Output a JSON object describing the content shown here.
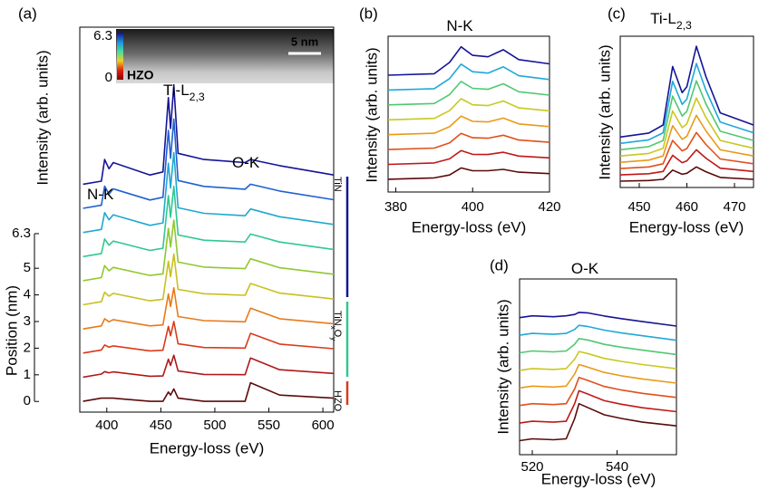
{
  "chart_data": [
    {
      "type": "line",
      "panel_label": "(a)",
      "xlabel": "Energy-loss (eV)",
      "ylabel": "Intensity (arb. units)",
      "y2label": "Position (nm)",
      "xlim": [
        375,
        610
      ],
      "xticks": [
        400,
        450,
        500,
        550,
        600
      ],
      "ylim": [
        -0.35,
        12.1
      ],
      "y2lim": [
        -0.4,
        14.05
      ],
      "y2ticks": [
        0,
        1,
        2,
        3,
        4,
        5,
        6.3
      ],
      "x": [
        378,
        395,
        398,
        402,
        406,
        440,
        452,
        457,
        459,
        462,
        466,
        490,
        528,
        533,
        560,
        610
      ],
      "series": [
        {
          "color": "#5a0a0a",
          "values": [
            0,
            0.1,
            0.1,
            0.1,
            0.1,
            0,
            0,
            0.3,
            0.2,
            0.4,
            0.1,
            0,
            0,
            0.6,
            0.2,
            0.1
          ]
        },
        {
          "color": "#b01818",
          "values": [
            0.78,
            0.88,
            0.96,
            0.92,
            0.95,
            0.81,
            0.82,
            1.36,
            1.16,
            1.49,
            0.98,
            0.87,
            0.86,
            1.4,
            1.02,
            0.9
          ]
        },
        {
          "color": "#d83a1a",
          "values": [
            1.56,
            1.66,
            1.82,
            1.75,
            1.79,
            1.63,
            1.65,
            2.42,
            2.12,
            2.58,
            1.86,
            1.74,
            1.72,
            2.2,
            1.85,
            1.7
          ]
        },
        {
          "color": "#e87a1a",
          "values": [
            2.34,
            2.44,
            2.67,
            2.57,
            2.64,
            2.44,
            2.47,
            3.47,
            3.07,
            3.67,
            2.74,
            2.61,
            2.57,
            3.01,
            2.67,
            2.51
          ]
        },
        {
          "color": "#c8c020",
          "values": [
            3.12,
            3.22,
            3.53,
            3.4,
            3.49,
            3.25,
            3.3,
            4.53,
            4.03,
            4.76,
            3.62,
            3.48,
            3.43,
            3.81,
            3.5,
            3.31
          ]
        },
        {
          "color": "#90c830",
          "values": [
            3.9,
            4.0,
            4.39,
            4.22,
            4.33,
            4.07,
            4.12,
            5.59,
            4.99,
            5.86,
            4.5,
            4.34,
            4.29,
            4.61,
            4.32,
            4.11
          ]
        },
        {
          "color": "#30c890",
          "values": [
            4.68,
            4.78,
            5.25,
            5.05,
            5.18,
            4.88,
            4.95,
            6.65,
            5.95,
            6.95,
            5.38,
            5.21,
            5.15,
            5.41,
            5.15,
            4.91
          ]
        },
        {
          "color": "#20a8d0",
          "values": [
            5.46,
            5.56,
            6.1,
            5.87,
            6.03,
            5.69,
            5.77,
            7.7,
            6.9,
            8.04,
            6.26,
            6.08,
            6.0,
            6.22,
            5.97,
            5.72
          ]
        },
        {
          "color": "#2060d0",
          "values": [
            6.24,
            6.34,
            6.96,
            6.7,
            6.87,
            6.51,
            6.6,
            8.76,
            7.86,
            9.13,
            7.14,
            6.95,
            6.86,
            7.02,
            6.8,
            6.52
          ]
        },
        {
          "color": "#141496",
          "values": [
            7.02,
            7.12,
            7.82,
            7.52,
            7.72,
            7.32,
            7.42,
            9.82,
            8.82,
            10.22,
            8.02,
            7.82,
            7.72,
            7.82,
            7.62,
            7.32
          ]
        }
      ],
      "annotations": [
        {
          "text": "N-K"
        },
        {
          "text": "Ti-L",
          "sub": "2,3"
        },
        {
          "text": "O-K"
        }
      ],
      "region_labels": [
        {
          "text": "TiN",
          "color": "#141496"
        },
        {
          "text": "TiN",
          "sub": "x",
          "text2": "O",
          "sub2": "y",
          "color": "#30c890"
        },
        {
          "text": "HZO",
          "color": "#d83a1a"
        }
      ],
      "inset": {
        "colorbar_ticks": [
          0,
          6.3
        ],
        "label": "HZO",
        "scale": "5 nm"
      }
    },
    {
      "type": "line",
      "panel_label": "(b)",
      "title": "N-K",
      "xlabel": "Energy-loss (eV)",
      "ylabel": "Intensity (arb. units)",
      "xlim": [
        378,
        420
      ],
      "xticks": [
        380,
        400,
        420
      ],
      "ylim": [
        0,
        11
      ],
      "x": [
        378,
        390,
        394,
        397,
        400,
        404,
        408,
        412,
        420
      ],
      "series": [
        {
          "color": "#5a0a0a",
          "values": [
            0.9,
            1.0,
            1.2,
            1.7,
            1.5,
            1.5,
            1.6,
            1.4,
            1.3
          ]
        },
        {
          "color": "#c01818",
          "values": [
            1.95,
            2.05,
            2.34,
            2.92,
            2.66,
            2.65,
            2.81,
            2.54,
            2.41
          ]
        },
        {
          "color": "#e0501a",
          "values": [
            3.0,
            3.1,
            3.47,
            4.14,
            3.83,
            3.8,
            4.01,
            3.67,
            3.51
          ]
        },
        {
          "color": "#e89a1a",
          "values": [
            4.05,
            4.15,
            4.61,
            5.36,
            4.99,
            4.95,
            5.22,
            4.81,
            4.62
          ]
        },
        {
          "color": "#c8c820",
          "values": [
            5.1,
            5.2,
            5.74,
            6.59,
            6.16,
            6.1,
            6.43,
            5.94,
            5.73
          ]
        },
        {
          "color": "#50c870",
          "values": [
            6.15,
            6.25,
            6.88,
            7.81,
            7.32,
            7.25,
            7.64,
            7.08,
            6.84
          ]
        },
        {
          "color": "#20a8d8",
          "values": [
            7.2,
            7.3,
            8.01,
            9.03,
            8.49,
            8.4,
            8.84,
            8.21,
            7.94
          ]
        },
        {
          "color": "#141496",
          "values": [
            8.25,
            8.35,
            9.15,
            10.25,
            9.65,
            9.55,
            10.05,
            9.35,
            9.05
          ]
        }
      ]
    },
    {
      "type": "line",
      "panel_label": "(c)",
      "title": "Ti-L",
      "title_sub": "2,3",
      "xlabel": "Energy-loss (eV)",
      "ylabel": "Intensity (arb. units)",
      "xlim": [
        446,
        474
      ],
      "xticks": [
        450,
        460,
        470
      ],
      "ylim": [
        0,
        12
      ],
      "x": [
        446,
        452,
        455,
        457,
        459,
        460,
        462,
        464,
        467,
        474
      ],
      "series": [
        {
          "color": "#5a0a0a",
          "values": [
            0.5,
            0.55,
            0.65,
            1.38,
            1.05,
            1.13,
            1.63,
            1.25,
            0.8,
            0.65
          ]
        },
        {
          "color": "#c01818",
          "values": [
            1.0,
            1.09,
            1.27,
            2.55,
            1.97,
            2.11,
            2.99,
            2.33,
            1.53,
            1.27
          ]
        },
        {
          "color": "#e0501a",
          "values": [
            1.5,
            1.63,
            1.88,
            3.73,
            2.9,
            3.09,
            4.36,
            3.41,
            2.26,
            1.88
          ]
        },
        {
          "color": "#e89a1a",
          "values": [
            2.0,
            2.17,
            2.5,
            4.9,
            3.82,
            4.07,
            5.73,
            4.49,
            2.99,
            2.5
          ]
        },
        {
          "color": "#c8c820",
          "values": [
            2.5,
            2.7,
            3.11,
            6.07,
            4.75,
            5.05,
            7.1,
            5.56,
            3.73,
            3.11
          ]
        },
        {
          "color": "#50c870",
          "values": [
            3.0,
            3.24,
            3.73,
            7.25,
            5.67,
            6.04,
            8.46,
            6.64,
            4.46,
            3.73
          ]
        },
        {
          "color": "#20a8d8",
          "values": [
            3.5,
            3.78,
            4.34,
            8.42,
            6.6,
            7.02,
            9.83,
            7.72,
            5.19,
            4.34
          ]
        },
        {
          "color": "#141496",
          "values": [
            4.0,
            4.32,
            4.96,
            9.6,
            7.52,
            8.0,
            11.2,
            8.8,
            5.92,
            4.96
          ]
        }
      ]
    },
    {
      "type": "line",
      "panel_label": "(d)",
      "title": "O-K",
      "xlabel": "Energy-loss (eV)",
      "ylabel": "Intensity (arb. units)",
      "xlim": [
        517,
        554
      ],
      "xticks": [
        520,
        540
      ],
      "ylim": [
        0,
        10
      ],
      "x": [
        517,
        520,
        525,
        528,
        530,
        531,
        533,
        537,
        541,
        546,
        554
      ],
      "series": [
        {
          "color": "#5a0a0a",
          "values": [
            0.8,
            0.9,
            0.85,
            0.9,
            2.06,
            2.9,
            2.69,
            2.27,
            2.06,
            1.85,
            1.64
          ]
        },
        {
          "color": "#c01818",
          "values": [
            1.8,
            1.9,
            1.85,
            1.9,
            2.91,
            3.64,
            3.46,
            3.07,
            2.87,
            2.67,
            2.45
          ]
        },
        {
          "color": "#e0501a",
          "values": [
            2.8,
            2.9,
            2.85,
            2.9,
            3.75,
            4.39,
            4.23,
            3.88,
            3.68,
            3.49,
            3.26
          ]
        },
        {
          "color": "#e89a1a",
          "values": [
            3.8,
            3.9,
            3.85,
            3.9,
            4.6,
            5.13,
            4.99,
            4.68,
            4.49,
            4.31,
            4.07
          ]
        },
        {
          "color": "#c8c820",
          "values": [
            4.8,
            4.9,
            4.85,
            4.9,
            5.44,
            5.87,
            5.76,
            5.48,
            5.31,
            5.13,
            4.89
          ]
        },
        {
          "color": "#50c870",
          "values": [
            5.8,
            5.9,
            5.85,
            5.9,
            6.29,
            6.61,
            6.53,
            6.28,
            6.12,
            5.95,
            5.7
          ]
        },
        {
          "color": "#20a8d8",
          "values": [
            6.8,
            6.9,
            6.85,
            6.9,
            7.13,
            7.36,
            7.3,
            7.09,
            6.93,
            6.77,
            6.51
          ]
        },
        {
          "color": "#141496",
          "values": [
            7.8,
            7.9,
            7.85,
            7.9,
            7.98,
            8.1,
            8.07,
            7.89,
            7.74,
            7.57,
            7.32
          ]
        }
      ]
    }
  ]
}
